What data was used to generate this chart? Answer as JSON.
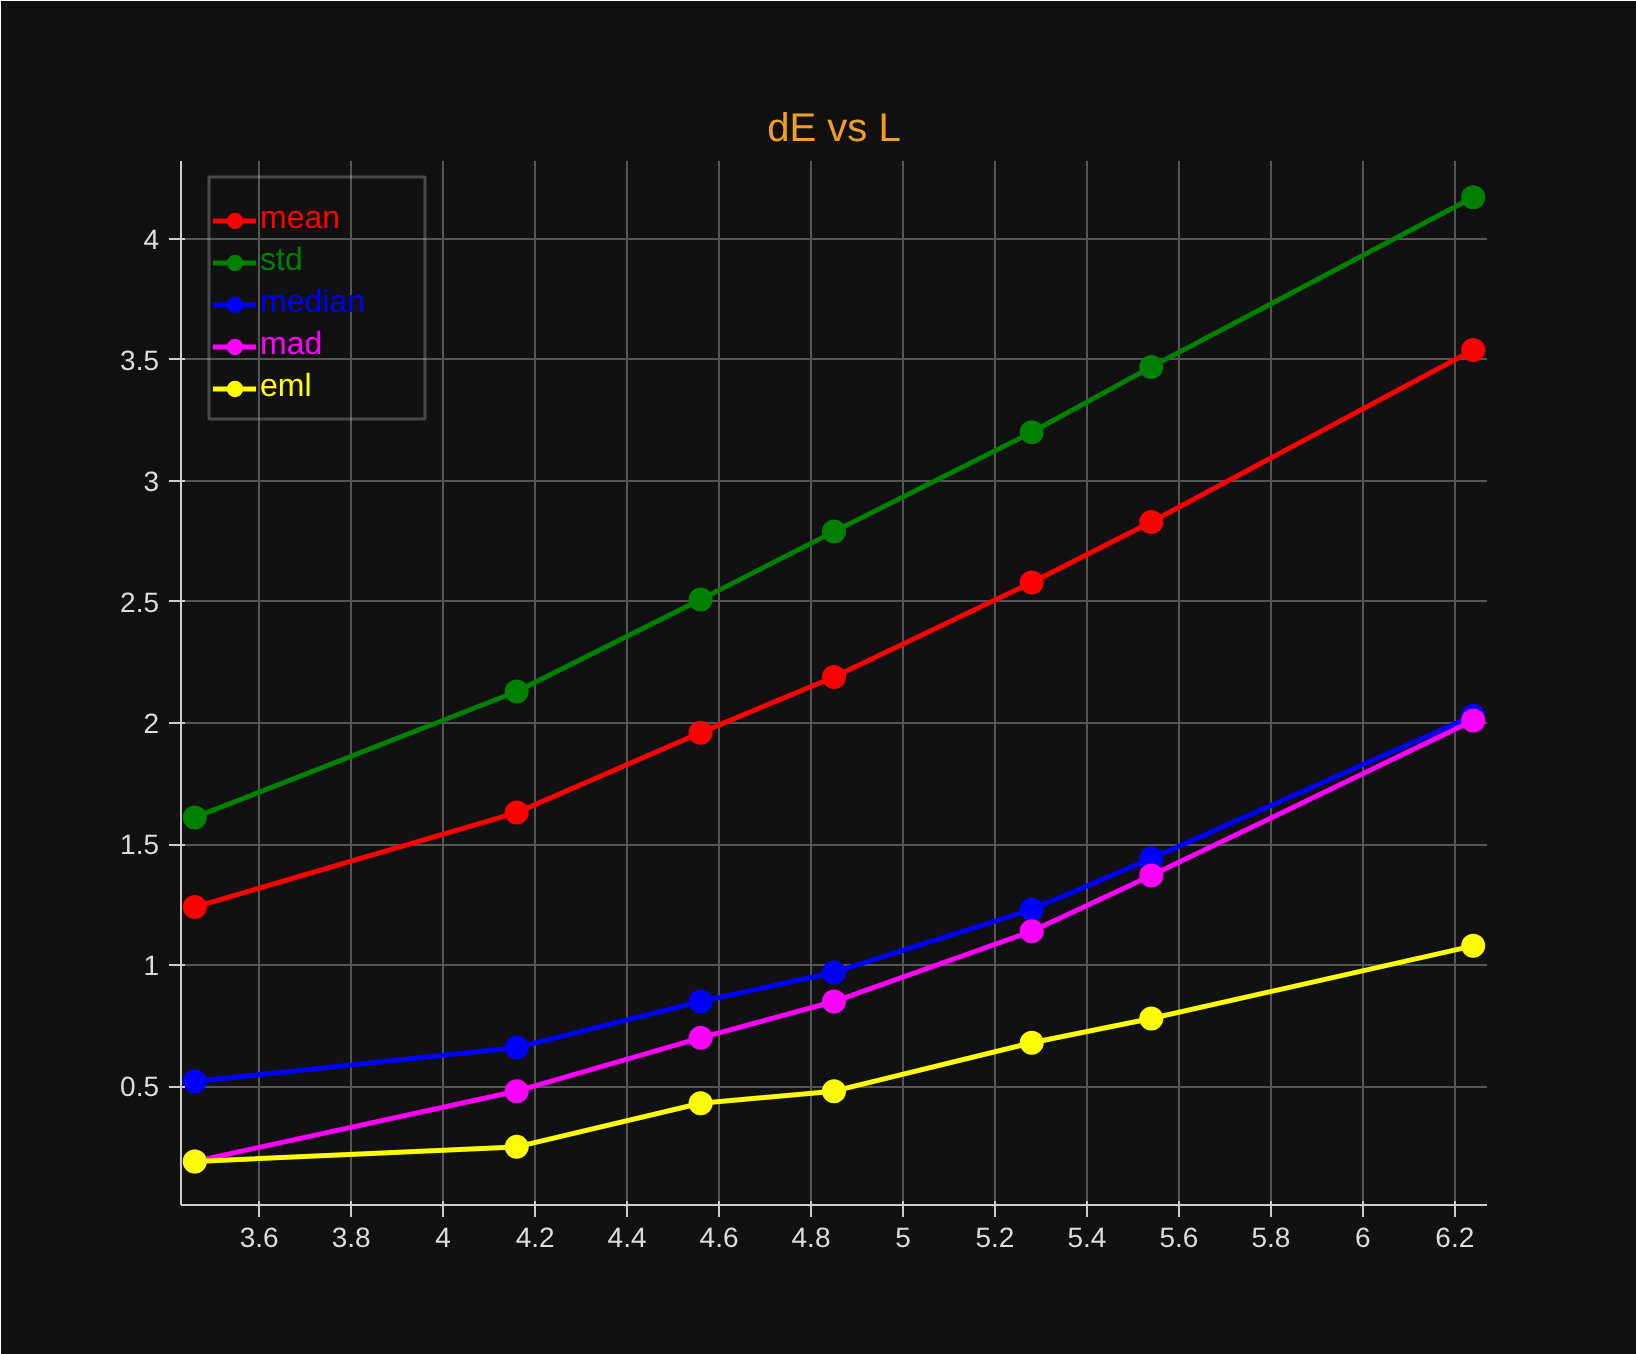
{
  "chart_data": {
    "type": "line",
    "title": "dE vs L",
    "x": [
      3.46,
      4.16,
      4.56,
      4.85,
      5.28,
      5.54,
      6.24
    ],
    "series": [
      {
        "name": "mean",
        "color": "#ff0000",
        "values": [
          1.24,
          1.63,
          1.96,
          2.19,
          2.58,
          2.83,
          3.54
        ]
      },
      {
        "name": "std",
        "color": "#008000",
        "values": [
          1.61,
          2.13,
          2.51,
          2.79,
          3.2,
          3.47,
          4.17
        ]
      },
      {
        "name": "median",
        "color": "#0000ff",
        "values": [
          0.52,
          0.66,
          0.85,
          0.97,
          1.23,
          1.44,
          2.03
        ]
      },
      {
        "name": "mad",
        "color": "#ff00ff",
        "values": [
          0.19,
          0.48,
          0.7,
          0.85,
          1.14,
          1.37,
          2.01
        ]
      },
      {
        "name": "eml",
        "color": "#ffff00",
        "values": [
          0.19,
          0.25,
          0.43,
          0.48,
          0.68,
          0.78,
          1.08
        ]
      }
    ],
    "xlim": [
      3.43,
      6.27
    ],
    "ylim": [
      0.01,
      4.32
    ],
    "xticks": [
      3.6,
      3.8,
      4,
      4.2,
      4.4,
      4.6,
      4.8,
      5,
      5.2,
      5.4,
      5.6,
      5.8,
      6,
      6.2
    ],
    "yticks": [
      0.5,
      1,
      1.5,
      2,
      2.5,
      3,
      3.5,
      4
    ],
    "grid": true,
    "legend": "top left",
    "marker": "circle",
    "line_style": "solid"
  }
}
